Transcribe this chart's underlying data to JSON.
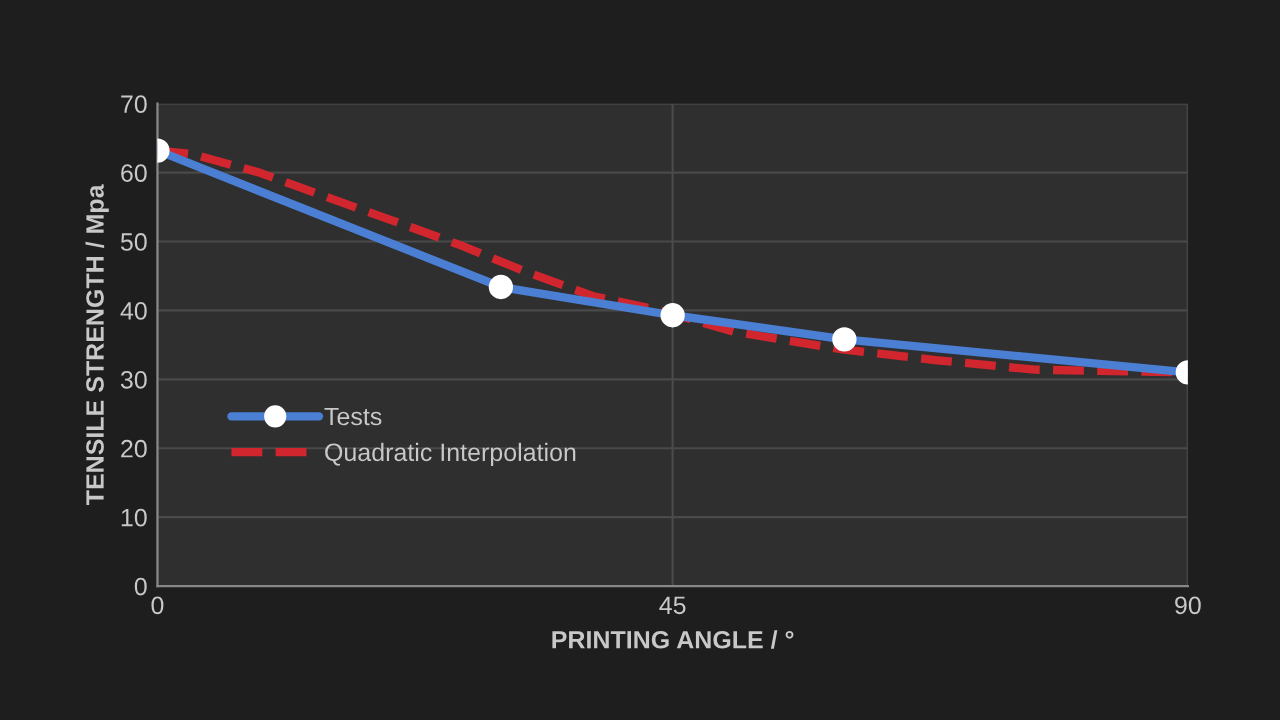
{
  "chart_data": {
    "type": "line",
    "xlabel": "PRINTING ANGLE / °",
    "ylabel": "TENSILE STRENGTH / Mpa",
    "xlim": [
      0,
      90
    ],
    "xticks": [
      0,
      45,
      90
    ],
    "ylim": [
      0,
      70
    ],
    "yticks": [
      0,
      10,
      20,
      30,
      40,
      50,
      60,
      70
    ],
    "grid": true,
    "legend": "left",
    "series": [
      {
        "name": "Tests",
        "color": "#4a7fd4",
        "marker": "circle",
        "line_style": "solid",
        "x": [
          0,
          30,
          45,
          60,
          90
        ],
        "values": [
          63.2,
          43.4,
          39.3,
          35.8,
          31
        ]
      },
      {
        "name": "Quadratic Interpolation",
        "color": "#d2262e",
        "marker": "none",
        "line_style": "dashed",
        "x": [
          0,
          3,
          8.9,
          14.7,
          20.6,
          26.4,
          32.2,
          38,
          43.9,
          50.4,
          60,
          67.9,
          76.6,
          90
        ],
        "values": [
          63.2,
          62.7,
          60,
          56.5,
          53,
          49.5,
          45.6,
          42.1,
          40,
          36.9,
          34.3,
          32.8,
          31.4,
          31
        ]
      }
    ]
  }
}
